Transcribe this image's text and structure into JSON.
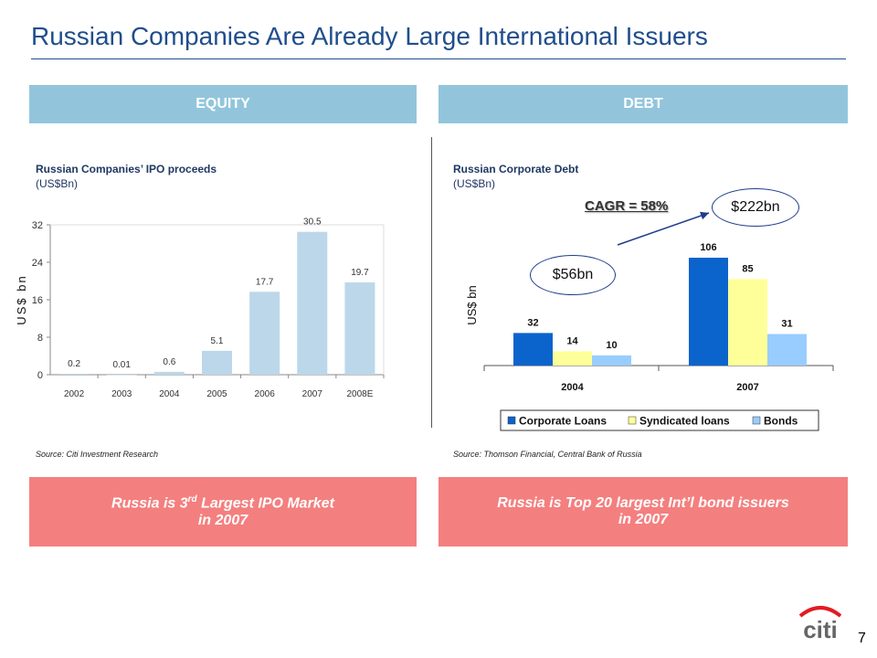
{
  "title": "Russian Companies Are Already Large International Issuers",
  "equity": {
    "band_label": "EQUITY",
    "chart_title": "Russian Companies’ IPO proceeds",
    "chart_unit": "(US$Bn)",
    "source": "Source: Citi Investment Research",
    "callout_pre": "Russia is 3",
    "callout_sup": "rd",
    "callout_post": " Largest IPO Market",
    "callout_line2": "in 2007"
  },
  "debt": {
    "band_label": "DEBT",
    "chart_title": "Russian Corporate Debt",
    "chart_unit": "(US$Bn)",
    "source": "Source: Thomson Financial, Central Bank of Russia",
    "callout_line1": "Russia is Top 20 largest Int’l bond issuers",
    "callout_line2": "in 2007",
    "cagr_label": "CAGR = 58%",
    "start_value_label": "$56bn",
    "end_value_label": "$222bn"
  },
  "page_number": "7",
  "logo_text": "citi",
  "colors": {
    "title": "#1f4e8c",
    "band": "#92c5dc",
    "callout": "#f47f7f",
    "ipo_bar": "#bcd7ea",
    "corporate_loans": "#0b63cc",
    "syndicated_loans": "#ffff99",
    "bonds": "#99ccff",
    "logo_arc": "#e31b23"
  },
  "chart_data": [
    {
      "type": "bar",
      "title": "Russian Companies’ IPO proceeds",
      "ylabel": "US$ bn",
      "xlabel": "",
      "categories": [
        "2002",
        "2003",
        "2004",
        "2005",
        "2006",
        "2007",
        "2008E"
      ],
      "values": [
        0.2,
        0.01,
        0.6,
        5.1,
        17.7,
        30.5,
        19.7
      ],
      "value_labels": [
        "0.2",
        "0.01",
        "0.6",
        "5.1",
        "17.7",
        "30.5",
        "19.7"
      ],
      "ylim": [
        0,
        32
      ],
      "yticks": [
        "0",
        "8",
        "16",
        "24",
        "32"
      ],
      "grid": false
    },
    {
      "type": "bar",
      "title": "Russian Corporate Debt",
      "ylabel": "US$ bn",
      "xlabel": "",
      "categories": [
        "2004",
        "2007"
      ],
      "series": [
        {
          "name": "Corporate Loans",
          "values": [
            32,
            106
          ]
        },
        {
          "name": "Syndicated loans",
          "values": [
            14,
            85
          ]
        },
        {
          "name": "Bonds",
          "values": [
            10,
            31
          ]
        }
      ],
      "ylim": [
        0,
        130
      ],
      "legend": "bottom",
      "grid": false
    }
  ]
}
